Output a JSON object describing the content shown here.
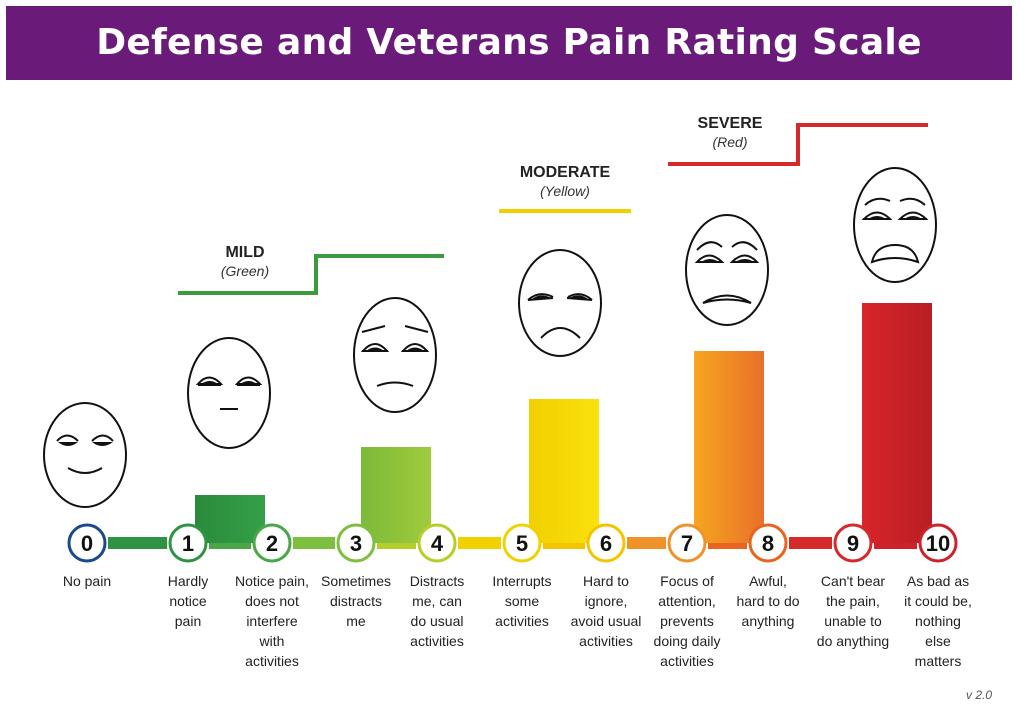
{
  "title": "Defense and Veterans Pain Rating Scale",
  "version": "v 2.0",
  "levels": [
    {
      "name": "MILD",
      "color_label": "(Green)",
      "color": "#3b9a3b"
    },
    {
      "name": "MODERATE",
      "color_label": "(Yellow)",
      "color": "#f0d000"
    },
    {
      "name": "SEVERE",
      "color_label": "(Red)",
      "color": "#d42a2a"
    }
  ],
  "chart_data": {
    "type": "bar",
    "categories": [
      "0",
      "1",
      "2",
      "3",
      "4",
      "5",
      "6",
      "7",
      "8",
      "9",
      "10"
    ],
    "bars": [
      {
        "rating": 0,
        "value": 0,
        "color": "#1a4a8c"
      },
      {
        "rating": 1,
        "value": 2,
        "color": "#2e9444"
      },
      {
        "rating": 3,
        "value": 4,
        "color": "#8cc63f"
      },
      {
        "rating": 5,
        "value": 6,
        "color": "#f5d300"
      },
      {
        "rating": 7,
        "value": 8,
        "color": "#f08a24"
      },
      {
        "rating": 9,
        "value": 10,
        "color": "#cc2229"
      }
    ]
  },
  "scale": [
    {
      "number": "0",
      "description": "No pain",
      "color": "#1a4a8c"
    },
    {
      "number": "1",
      "description": "Hardly\nnotice\npain",
      "color": "#2e9444"
    },
    {
      "number": "2",
      "description": "Notice pain,\ndoes not\ninterfere\nwith\nactivities",
      "color": "#4aa646"
    },
    {
      "number": "3",
      "description": "Sometimes\ndistracts\nme",
      "color": "#7dbf3f"
    },
    {
      "number": "4",
      "description": "Distracts\nme, can\ndo usual\nactivities",
      "color": "#b5cf2a"
    },
    {
      "number": "5",
      "description": "Interrupts\nsome\nactivities",
      "color": "#f2d100"
    },
    {
      "number": "6",
      "description": "Hard to\nignore,\navoid usual\nactivities",
      "color": "#f5c400"
    },
    {
      "number": "7",
      "description": "Focus of\nattention,\nprevents\ndoing daily\nactivities",
      "color": "#f0922a"
    },
    {
      "number": "8",
      "description": "Awful,\nhard to do\nanything",
      "color": "#e8641f"
    },
    {
      "number": "9",
      "description": "Can't bear\nthe pain,\nunable to\ndo anything",
      "color": "#d42a2a"
    },
    {
      "number": "10",
      "description": "As bad as\nit could be,\nnothing\nelse\nmatters",
      "color": "#cc2229"
    }
  ]
}
